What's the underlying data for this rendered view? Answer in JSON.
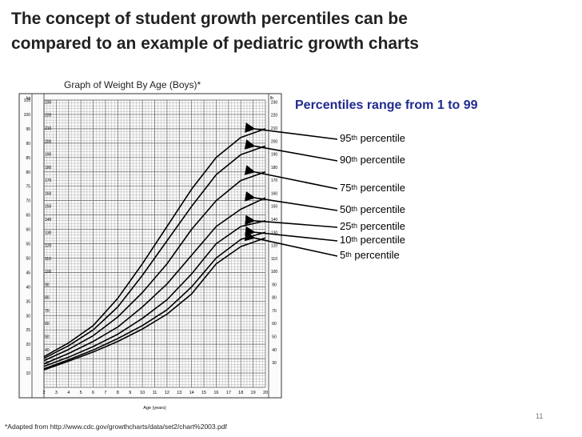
{
  "slide": {
    "title": "The concept of student growth percentiles can be\ncompared to an example of pediatric growth charts",
    "chart_caption": "Graph of Weight By Age (Boys)*",
    "range_note": "Percentiles range from 1 to 99",
    "footnote": "*Adapted from http://www.cdc.gov/growthcharts/data/set2/chart%2003.pdf",
    "page_number": "11"
  },
  "percentile_labels": [
    {
      "num": "95",
      "sup": "th",
      "text": "percentile"
    },
    {
      "num": "90",
      "sup": "th",
      "text": "percentile"
    },
    {
      "num": "75",
      "sup": "th",
      "text": "percentile"
    },
    {
      "num": "50",
      "sup": "th",
      "text": "percentile"
    },
    {
      "num": "25",
      "sup": "th",
      "text": "percentile"
    },
    {
      "num": "10",
      "sup": "th",
      "text": "percentile"
    },
    {
      "num": "5",
      "sup": "th",
      "text": "percentile"
    }
  ],
  "chart_data": {
    "type": "line",
    "xlabel": "Age (years)",
    "left_unit": "kg",
    "right_unit": "lb",
    "x_ticks": [
      "2",
      "3",
      "4",
      "5",
      "6",
      "7",
      "8",
      "9",
      "10",
      "11",
      "12",
      "13",
      "14",
      "15",
      "16",
      "17",
      "18",
      "19",
      "20"
    ],
    "xlim": [
      2,
      20
    ],
    "ylim": [
      5,
      105
    ],
    "kg_ticks": [
      "105",
      "100",
      "95",
      "90",
      "85",
      "80",
      "75",
      "70",
      "65",
      "60",
      "55",
      "50",
      "45",
      "40",
      "35",
      "30",
      "25",
      "20",
      "15",
      "10"
    ],
    "lb_ticks": [
      "230",
      "220",
      "210",
      "200",
      "190",
      "180",
      "170",
      "160",
      "150",
      "140",
      "130",
      "120",
      "110",
      "100",
      "90",
      "80",
      "70",
      "60",
      "50",
      "40",
      "30"
    ],
    "x": [
      2,
      4,
      6,
      8,
      10,
      12,
      14,
      16,
      18,
      20
    ],
    "series": [
      {
        "name": "95",
        "values": [
          15.7,
          20.5,
          26.5,
          36,
          48,
          61,
          74,
          85,
          92,
          95
        ]
      },
      {
        "name": "90",
        "values": [
          15.1,
          19.5,
          25,
          33,
          44,
          56,
          68,
          79,
          86,
          89
        ]
      },
      {
        "name": "75",
        "values": [
          14.3,
          18.2,
          23,
          29.5,
          38,
          48,
          60,
          70,
          77,
          80
        ]
      },
      {
        "name": "50",
        "values": [
          13.2,
          16.8,
          21,
          26,
          33,
          41,
          51,
          61,
          67,
          71
        ]
      },
      {
        "name": "25",
        "values": [
          12.3,
          15.5,
          19.2,
          23.5,
          29,
          35.5,
          44.5,
          55,
          61,
          63
        ]
      },
      {
        "name": "10",
        "values": [
          11.5,
          14.6,
          18,
          22,
          26.5,
          32,
          40,
          50,
          56.5,
          59
        ]
      },
      {
        "name": "5",
        "values": [
          11.1,
          14.1,
          17.3,
          21,
          25.3,
          30.5,
          37.5,
          48,
          54,
          57
        ]
      }
    ]
  }
}
